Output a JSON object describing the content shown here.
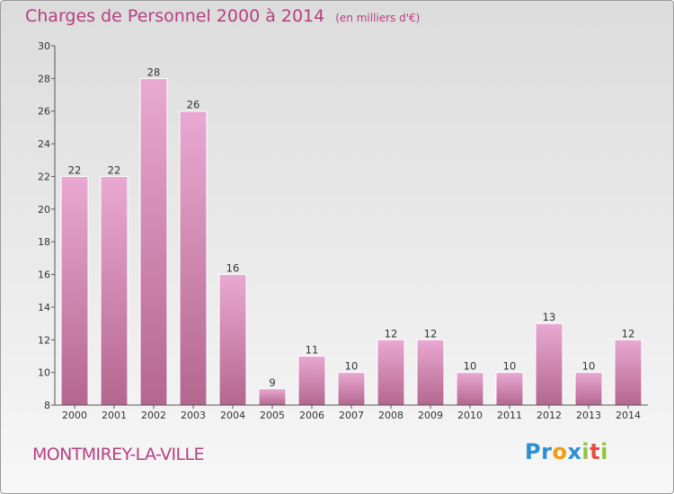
{
  "title": "Charges de Personnel 2000 à 2014",
  "unit_note": "(en milliers d'€)",
  "town": "MONTMIREY-LA-VILLE",
  "logo": {
    "letters": [
      "P",
      "r",
      "o",
      "x",
      "i",
      "t",
      "i"
    ],
    "colors": [
      "#2c8fd4",
      "#2c8fd4",
      "#f39c12",
      "#2c8fd4",
      "#8cc63f",
      "#e84c3d",
      "#8cc63f"
    ]
  },
  "colors": {
    "accent": "#b5407f",
    "bar_light": "#e9a9d2",
    "bar_dark": "#b4678f"
  },
  "chart_data": {
    "type": "bar",
    "title": "Charges de Personnel 2000 à 2014",
    "subtitle": "(en milliers d'€)",
    "categories": [
      "2000",
      "2001",
      "2002",
      "2003",
      "2004",
      "2005",
      "2006",
      "2007",
      "2008",
      "2009",
      "2010",
      "2011",
      "2012",
      "2013",
      "2014"
    ],
    "values": [
      22,
      22,
      28,
      26,
      16,
      9,
      11,
      10,
      12,
      12,
      10,
      10,
      13,
      10,
      12
    ],
    "data_labels": [
      "22",
      "22",
      "28",
      "26",
      "16",
      "9",
      "11",
      "10",
      "12",
      "12",
      "10",
      "10",
      "13",
      "10",
      "12"
    ],
    "ylim": [
      8,
      30
    ],
    "yticks": [
      8,
      10,
      12,
      14,
      16,
      18,
      20,
      22,
      24,
      26,
      28,
      30
    ],
    "ytick_labels": [
      "8",
      "10",
      "12",
      "14",
      "16",
      "18",
      "20",
      "22",
      "24",
      "26",
      "28",
      "30"
    ],
    "xlabel": "",
    "ylabel": "",
    "grid": false
  }
}
